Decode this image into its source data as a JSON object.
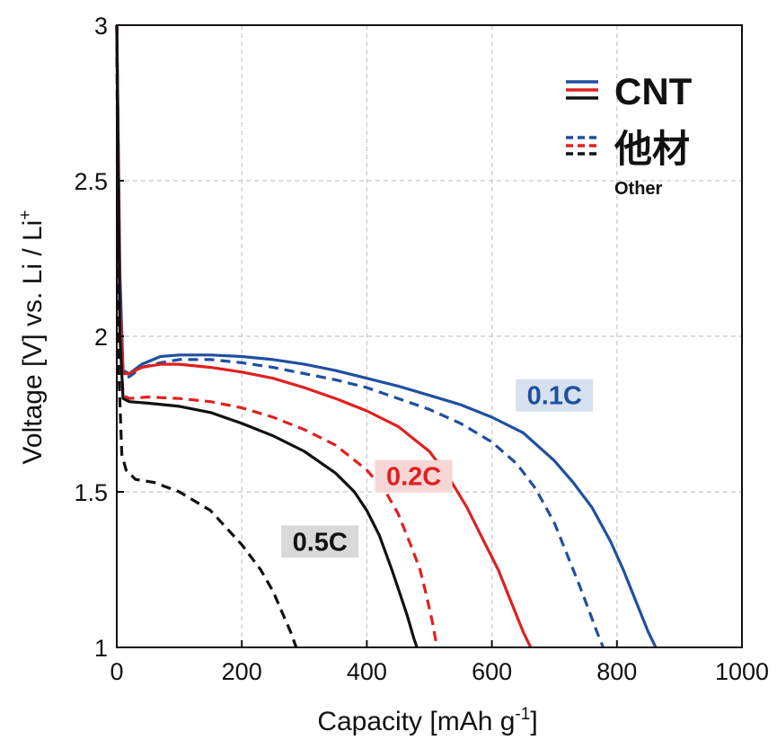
{
  "chart_data": {
    "type": "line",
    "xlabel": "Capacity [mAh g",
    "xlabel_sup": "-1",
    "xlabel_end": "]",
    "ylabel": "Voltage [V] vs. Li / Li",
    "ylabel_sup": "+",
    "xlim": [
      0,
      1000
    ],
    "ylim": [
      1,
      3
    ],
    "x_ticks": [
      "0",
      "200",
      "400",
      "600",
      "800",
      "1000"
    ],
    "y_ticks": [
      "1",
      "1.5",
      "2",
      "2.5",
      "3"
    ],
    "grid": true,
    "legend": {
      "placement": "top-right",
      "entries": [
        {
          "label": "CNT",
          "style": "solid",
          "colors": [
            "#1f4fa0",
            "#e02020",
            "#111111"
          ]
        },
        {
          "label": "他材",
          "sublabel": "Other",
          "style": "dashed",
          "colors": [
            "#1f4fa0",
            "#e02020",
            "#111111"
          ]
        }
      ]
    },
    "annotations": [
      {
        "text": "0.1C",
        "x": 700,
        "y": 1.81,
        "color": "#1f4fa0",
        "bg": "#d6e0ef"
      },
      {
        "text": "0.2C",
        "x": 475,
        "y": 1.55,
        "color": "#e02020",
        "bg": "#f7d6d6"
      },
      {
        "text": "0.5C",
        "x": 325,
        "y": 1.34,
        "color": "#111111",
        "bg": "#d9d9d9"
      }
    ],
    "series": [
      {
        "rate": "0.1C",
        "material": "CNT",
        "color": "#1f4fa0",
        "dash": false,
        "x": [
          0,
          5,
          10,
          20,
          40,
          70,
          100,
          150,
          200,
          250,
          300,
          350,
          400,
          450,
          500,
          550,
          600,
          650,
          700,
          730,
          760,
          790,
          810,
          830,
          850,
          862
        ],
        "y": [
          3.0,
          2.2,
          1.89,
          1.88,
          1.91,
          1.935,
          1.94,
          1.94,
          1.935,
          1.925,
          1.91,
          1.89,
          1.865,
          1.84,
          1.81,
          1.78,
          1.74,
          1.69,
          1.6,
          1.53,
          1.45,
          1.34,
          1.25,
          1.15,
          1.05,
          1.0
        ]
      },
      {
        "rate": "0.1C",
        "material": "Other",
        "color": "#1f4fa0",
        "dash": true,
        "x": [
          0,
          5,
          10,
          20,
          40,
          70,
          100,
          150,
          200,
          250,
          300,
          350,
          400,
          450,
          500,
          550,
          600,
          640,
          670,
          700,
          720,
          740,
          755,
          768,
          778
        ],
        "y": [
          3.0,
          2.1,
          1.87,
          1.87,
          1.9,
          1.915,
          1.925,
          1.925,
          1.915,
          1.9,
          1.88,
          1.86,
          1.835,
          1.8,
          1.765,
          1.72,
          1.66,
          1.59,
          1.51,
          1.4,
          1.3,
          1.2,
          1.12,
          1.05,
          1.0
        ]
      },
      {
        "rate": "0.2C",
        "material": "CNT",
        "color": "#e02020",
        "dash": false,
        "x": [
          0,
          5,
          10,
          20,
          40,
          70,
          100,
          150,
          200,
          250,
          300,
          350,
          400,
          450,
          500,
          530,
          560,
          590,
          610,
          630,
          650,
          662
        ],
        "y": [
          3.0,
          2.1,
          1.88,
          1.88,
          1.9,
          1.91,
          1.91,
          1.9,
          1.885,
          1.865,
          1.835,
          1.8,
          1.76,
          1.71,
          1.63,
          1.55,
          1.45,
          1.33,
          1.25,
          1.15,
          1.05,
          1.0
        ]
      },
      {
        "rate": "0.2C",
        "material": "Other",
        "color": "#e02020",
        "dash": true,
        "x": [
          0,
          5,
          10,
          20,
          50,
          100,
          150,
          200,
          250,
          300,
          350,
          400,
          430,
          450,
          470,
          485,
          495,
          505,
          512
        ],
        "y": [
          3.0,
          2.0,
          1.81,
          1.8,
          1.805,
          1.8,
          1.79,
          1.77,
          1.74,
          1.7,
          1.65,
          1.57,
          1.5,
          1.43,
          1.33,
          1.25,
          1.17,
          1.08,
          1.0
        ]
      },
      {
        "rate": "0.5C",
        "material": "CNT",
        "color": "#111111",
        "dash": false,
        "x": [
          0,
          5,
          10,
          20,
          50,
          100,
          150,
          200,
          250,
          300,
          350,
          380,
          400,
          420,
          440,
          455,
          465,
          475,
          480
        ],
        "y": [
          3.0,
          2.0,
          1.8,
          1.79,
          1.785,
          1.775,
          1.755,
          1.72,
          1.68,
          1.63,
          1.56,
          1.5,
          1.44,
          1.36,
          1.25,
          1.16,
          1.1,
          1.03,
          1.0
        ]
      },
      {
        "rate": "0.5C",
        "material": "Other",
        "color": "#111111",
        "dash": true,
        "x": [
          0,
          3,
          8,
          15,
          30,
          60,
          100,
          150,
          200,
          230,
          250,
          265,
          278,
          287
        ],
        "y": [
          3.0,
          1.9,
          1.62,
          1.57,
          1.54,
          1.53,
          1.5,
          1.44,
          1.33,
          1.25,
          1.18,
          1.11,
          1.05,
          1.0
        ]
      }
    ]
  }
}
